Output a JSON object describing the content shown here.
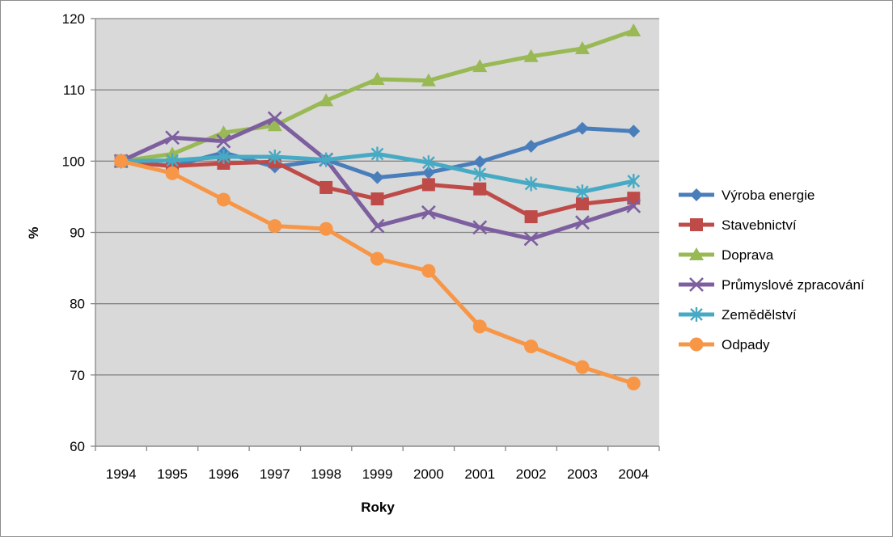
{
  "chart_data": {
    "type": "line",
    "title": "",
    "xlabel": "Roky",
    "ylabel": "%",
    "ylim": [
      60,
      120
    ],
    "ytick_step": 10,
    "grid": true,
    "legend_position": "right",
    "plot_background": "#d9d9d9",
    "categories": [
      "1994",
      "1995",
      "1996",
      "1997",
      "1998",
      "1999",
      "2000",
      "2001",
      "2002",
      "2003",
      "2004"
    ],
    "yticks": [
      "60",
      "70",
      "80",
      "90",
      "100",
      "110",
      "120"
    ],
    "series": [
      {
        "name": "Výroba energie",
        "color": "#4a7ebb",
        "marker": "diamond",
        "values": [
          100,
          99.3,
          101.2,
          99.2,
          100.2,
          97.7,
          98.4,
          99.9,
          102.1,
          104.6,
          104.2
        ]
      },
      {
        "name": "Stavebnictví",
        "color": "#be4b48",
        "marker": "square",
        "values": [
          100,
          99.3,
          99.7,
          99.9,
          96.3,
          94.7,
          96.7,
          96.1,
          92.2,
          94.0,
          94.8
        ]
      },
      {
        "name": "Doprava",
        "color": "#98b954",
        "marker": "triangle",
        "values": [
          100,
          101.0,
          104.0,
          105.0,
          108.5,
          111.5,
          111.3,
          113.3,
          114.7,
          115.8,
          118.3
        ]
      },
      {
        "name": "Průmyslové zpracování",
        "color": "#7d5fa0",
        "marker": "x",
        "values": [
          100,
          103.3,
          102.8,
          106.0,
          100.2,
          90.9,
          92.8,
          90.7,
          89.1,
          91.4,
          93.7
        ]
      },
      {
        "name": "Zemědělství",
        "color": "#46aac5",
        "marker": "star",
        "values": [
          100,
          100.1,
          100.6,
          100.6,
          100.2,
          101.0,
          99.8,
          98.2,
          96.8,
          95.7,
          97.2
        ]
      },
      {
        "name": "Odpady",
        "color": "#f79646",
        "marker": "circle",
        "values": [
          100,
          98.3,
          94.6,
          90.9,
          90.5,
          86.3,
          84.6,
          76.8,
          74.0,
          71.1,
          68.8
        ]
      }
    ]
  }
}
